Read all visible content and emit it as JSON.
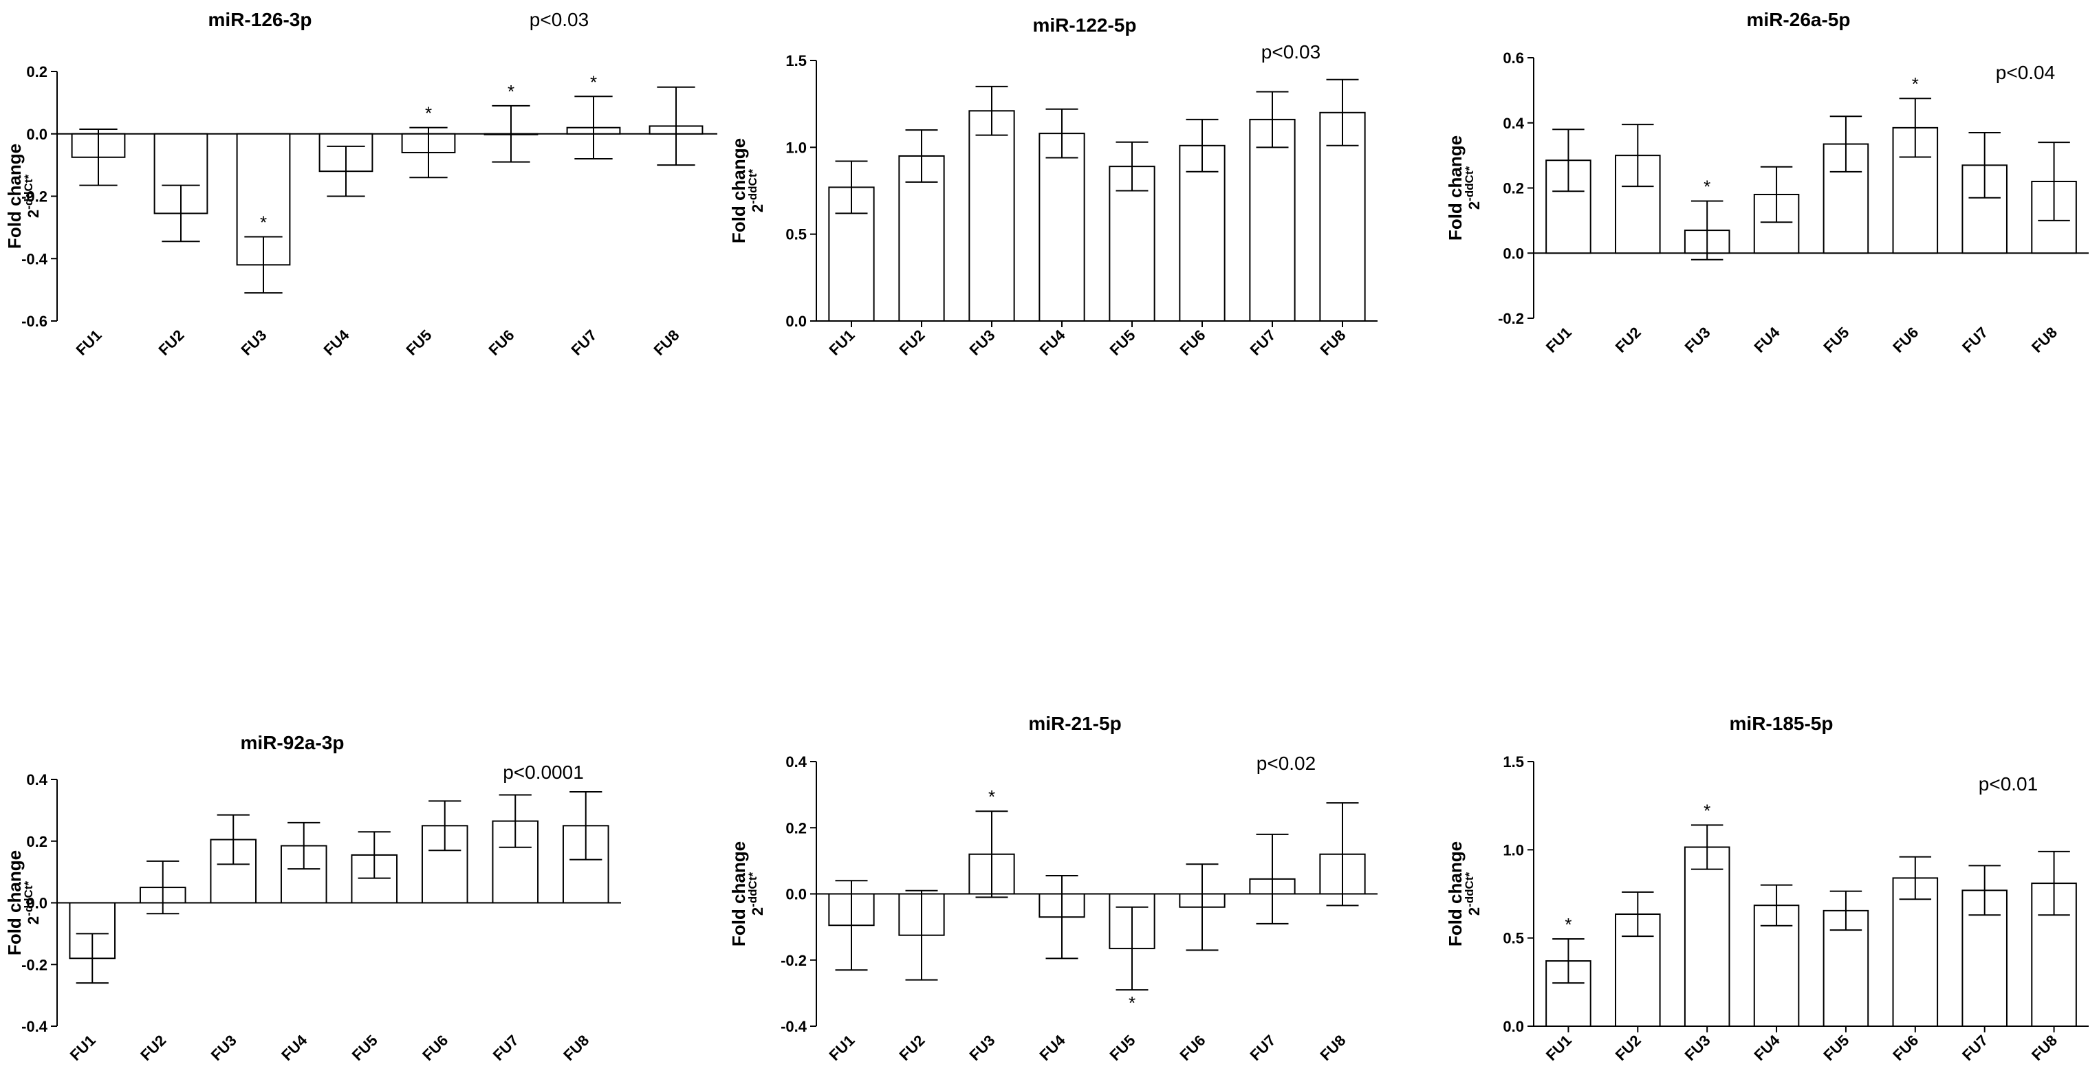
{
  "chart_data": [
    {
      "type": "bar",
      "title": "miR-126-3p",
      "pvalue": "p<0.03",
      "ylabel": "Fold change",
      "ylabel2_base": "2",
      "ylabel2_sup": "-ddCt*",
      "categories": [
        "FU1",
        "FU2",
        "FU3",
        "FU4",
        "FU5",
        "FU6",
        "FU7",
        "FU8"
      ],
      "values": [
        -0.075,
        -0.255,
        -0.42,
        -0.12,
        -0.06,
        0.0,
        0.02,
        0.025
      ],
      "errors": [
        0.09,
        0.09,
        0.09,
        0.08,
        0.08,
        0.09,
        0.1,
        0.125
      ],
      "significant": [
        false,
        false,
        true,
        false,
        true,
        true,
        true,
        false
      ],
      "ylim": [
        -0.6,
        0.2
      ],
      "yticks": [
        -0.6,
        -0.4,
        -0.2,
        0.0,
        0.2
      ],
      "ytick_labels": [
        "-0.6",
        "-0.4",
        "-0.2",
        "0.0",
        "0.2"
      ]
    },
    {
      "type": "bar",
      "title": "miR-122-5p",
      "pvalue": "p<0.03",
      "ylabel": "Fold change",
      "ylabel2_base": "2",
      "ylabel2_sup": "-ddCt*",
      "categories": [
        "FU1",
        "FU2",
        "FU3",
        "FU4",
        "FU5",
        "FU6",
        "FU7",
        "FU8"
      ],
      "values": [
        0.77,
        0.95,
        1.21,
        1.08,
        0.89,
        1.01,
        1.16,
        1.2
      ],
      "errors": [
        0.15,
        0.15,
        0.14,
        0.14,
        0.14,
        0.15,
        0.16,
        0.19
      ],
      "significant": [
        false,
        false,
        false,
        false,
        false,
        false,
        false,
        false
      ],
      "ylim": [
        0,
        1.5
      ],
      "yticks": [
        0,
        0.5,
        1.0,
        1.5
      ],
      "ytick_labels": [
        "0.0",
        "0.5",
        "1.0",
        "1.5"
      ]
    },
    {
      "type": "bar",
      "title": "miR-26a-5p",
      "pvalue": "p<0.04",
      "ylabel": "Fold change",
      "ylabel2_base": "2",
      "ylabel2_sup": "-ddCt*",
      "categories": [
        "FU1",
        "FU2",
        "FU3",
        "FU4",
        "FU5",
        "FU6",
        "FU7",
        "FU8"
      ],
      "values": [
        0.285,
        0.3,
        0.07,
        0.18,
        0.335,
        0.385,
        0.27,
        0.22
      ],
      "errors": [
        0.095,
        0.095,
        0.09,
        0.085,
        0.085,
        0.09,
        0.1,
        0.12
      ],
      "significant": [
        false,
        false,
        true,
        false,
        false,
        true,
        false,
        false
      ],
      "ylim": [
        -0.2,
        0.6
      ],
      "yticks": [
        -0.2,
        0.0,
        0.2,
        0.4,
        0.6
      ],
      "ytick_labels": [
        "-0.2",
        "0.0",
        "0.2",
        "0.4",
        "0.6"
      ]
    },
    {
      "type": "bar",
      "title": "miR-92a-3p",
      "pvalue": "p<0.0001",
      "ylabel": "Fold change",
      "ylabel2_base": "2",
      "ylabel2_sup": "-ddCt*",
      "categories": [
        "FU1",
        "FU2",
        "FU3",
        "FU4",
        "FU5",
        "FU6",
        "FU7",
        "FU8"
      ],
      "values": [
        -0.18,
        0.05,
        0.205,
        0.185,
        0.155,
        0.25,
        0.265,
        0.25
      ],
      "errors": [
        0.08,
        0.085,
        0.08,
        0.075,
        0.075,
        0.08,
        0.085,
        0.11
      ],
      "significant": [
        false,
        false,
        false,
        false,
        false,
        false,
        false,
        false
      ],
      "ylim": [
        -0.4,
        0.4
      ],
      "yticks": [
        -0.4,
        -0.2,
        0.0,
        0.2,
        0.4
      ],
      "ytick_labels": [
        "-0.4",
        "-0.2",
        "0.0",
        "0.2",
        "0.4"
      ]
    },
    {
      "type": "bar",
      "title": "miR-21-5p",
      "pvalue": "p<0.02",
      "ylabel": "Fold change",
      "ylabel2_base": "2",
      "ylabel2_sup": "-ddCt*",
      "categories": [
        "FU1",
        "FU2",
        "FU3",
        "FU4",
        "FU5",
        "FU6",
        "FU7",
        "FU8"
      ],
      "values": [
        -0.095,
        -0.125,
        0.12,
        -0.07,
        -0.165,
        -0.04,
        0.045,
        0.12
      ],
      "errors": [
        0.135,
        0.135,
        0.13,
        0.125,
        0.125,
        0.13,
        0.135,
        0.155
      ],
      "significant": [
        false,
        false,
        true,
        false,
        true,
        false,
        false,
        false
      ],
      "ylim": [
        -0.4,
        0.4
      ],
      "yticks": [
        -0.4,
        -0.2,
        0.0,
        0.2,
        0.4
      ],
      "ytick_labels": [
        "-0.4",
        "-0.2",
        "0.0",
        "0.2",
        "0.4"
      ]
    },
    {
      "type": "bar",
      "title": "miR-185-5p",
      "pvalue": "p<0.01",
      "ylabel": "Fold change",
      "ylabel2_base": "2",
      "ylabel2_sup": "-ddCt*",
      "categories": [
        "FU1",
        "FU2",
        "FU3",
        "FU4",
        "FU5",
        "FU6",
        "FU7",
        "FU8"
      ],
      "values": [
        0.37,
        0.635,
        1.015,
        0.685,
        0.655,
        0.84,
        0.77,
        0.81
      ],
      "errors": [
        0.125,
        0.125,
        0.125,
        0.115,
        0.11,
        0.12,
        0.14,
        0.18
      ],
      "significant": [
        true,
        false,
        true,
        false,
        false,
        false,
        false,
        false
      ],
      "ylim": [
        0,
        1.5
      ],
      "yticks": [
        0,
        0.5,
        1.0,
        1.5
      ],
      "ytick_labels": [
        "0.0",
        "0.5",
        "1.0",
        "1.5"
      ]
    }
  ]
}
